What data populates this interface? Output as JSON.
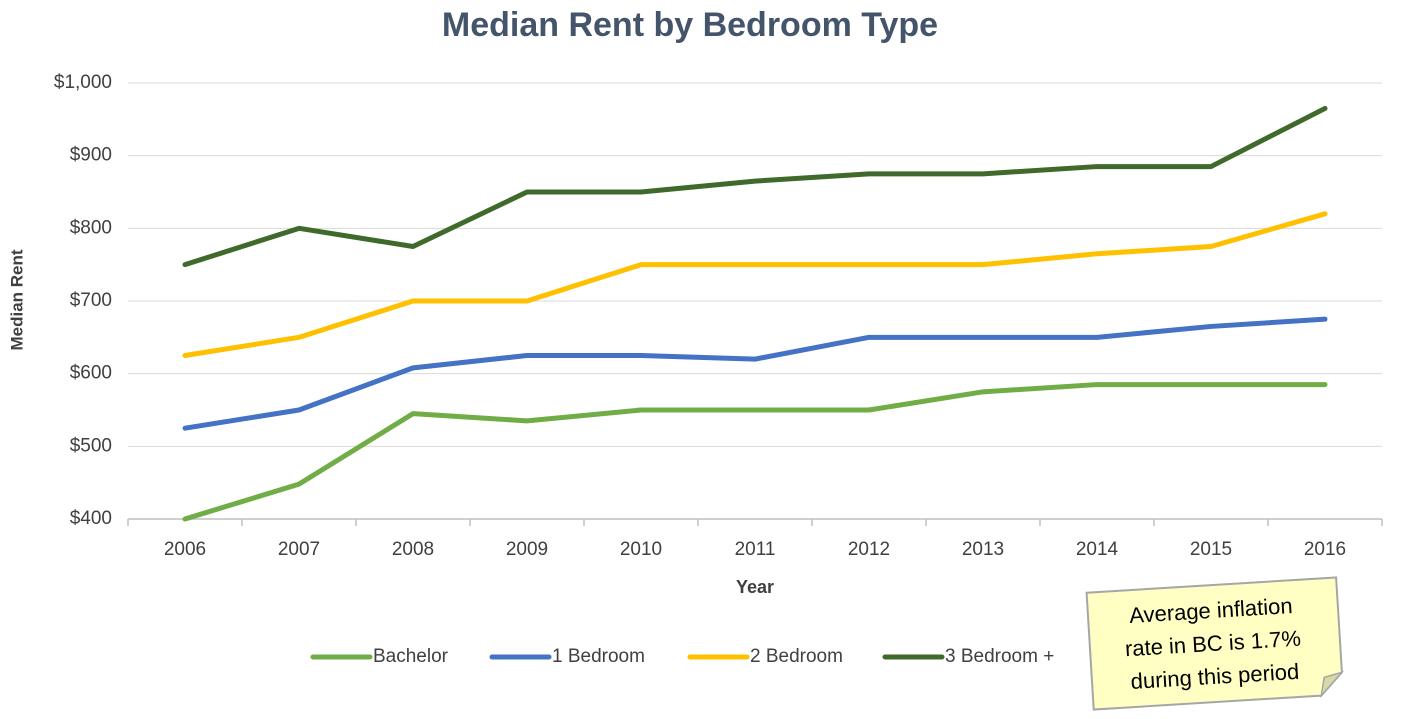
{
  "chart_data": {
    "type": "line",
    "title": "Median Rent by Bedroom Type",
    "x_label": "Year",
    "y_label": "Median Rent",
    "categories": [
      "2006",
      "2007",
      "2008",
      "2009",
      "2010",
      "2011",
      "2012",
      "2013",
      "2014",
      "2015",
      "2016"
    ],
    "series": [
      {
        "name": "Bachelor",
        "color": "#70ad47",
        "values": [
          400,
          448,
          545,
          535,
          550,
          550,
          550,
          575,
          585,
          585,
          585
        ]
      },
      {
        "name": "1 Bedroom",
        "color": "#4472c4",
        "values": [
          525,
          550,
          608,
          625,
          625,
          620,
          650,
          650,
          650,
          665,
          675
        ]
      },
      {
        "name": "2 Bedroom",
        "color": "#ffc000",
        "values": [
          625,
          650,
          700,
          700,
          750,
          750,
          750,
          750,
          765,
          775,
          820
        ]
      },
      {
        "name": "3 Bedroom +",
        "color": "#3f6a2b",
        "values": [
          750,
          800,
          775,
          850,
          850,
          865,
          875,
          875,
          885,
          885,
          965
        ]
      }
    ],
    "ylim": [
      400,
      1000
    ],
    "yticks": [
      {
        "value": 400,
        "label": "$400"
      },
      {
        "value": 500,
        "label": "$500"
      },
      {
        "value": 600,
        "label": "$600"
      },
      {
        "value": 700,
        "label": "$700"
      },
      {
        "value": 800,
        "label": "$800"
      },
      {
        "value": 900,
        "label": "$900"
      },
      {
        "value": 1000,
        "label": "$1,000"
      }
    ],
    "grid": true,
    "legend": "bottom",
    "annotation": [
      "Average inflation",
      "rate in BC is 1.7%",
      "during this period"
    ]
  }
}
